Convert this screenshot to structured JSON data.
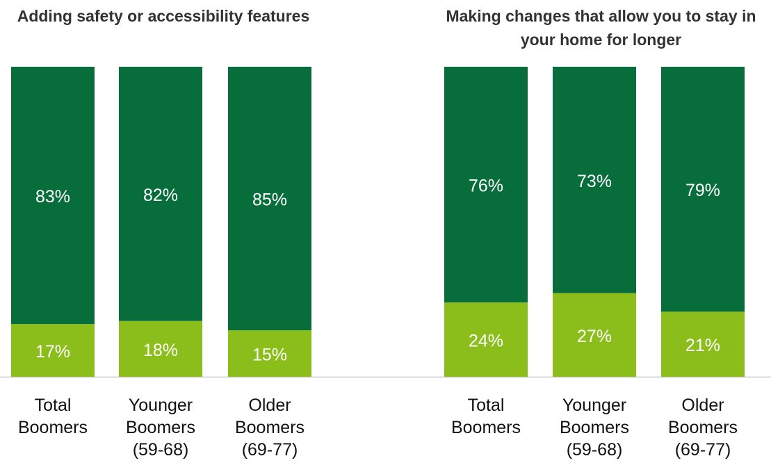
{
  "chart_data": [
    {
      "type": "bar",
      "stacked": true,
      "title": "Adding safety or accessibility features",
      "categories": [
        "Total Boomers",
        "Younger Boomers (59-68)",
        "Older Boomers (69-77)"
      ],
      "category_lines": [
        [
          "Total",
          "Boomers"
        ],
        [
          "Younger",
          "Boomers",
          "(59-68)"
        ],
        [
          "Older",
          "Boomers",
          "(69-77)"
        ]
      ],
      "series": [
        {
          "values": [
            17,
            18,
            15
          ],
          "labels": [
            "17%",
            "18%",
            "15%"
          ],
          "color": "#8BBE1A"
        },
        {
          "values": [
            83,
            82,
            85
          ],
          "labels": [
            "83%",
            "82%",
            "85%"
          ],
          "color": "#066D3B"
        }
      ],
      "ylim": [
        0,
        100
      ],
      "grid": false,
      "legend": "none"
    },
    {
      "type": "bar",
      "stacked": true,
      "title": "Making changes that allow you to stay in your home for longer",
      "categories": [
        "Total Boomers",
        "Younger Boomers (59-68)",
        "Older Boomers (69-77)"
      ],
      "category_lines": [
        [
          "Total",
          "Boomers"
        ],
        [
          "Younger",
          "Boomers",
          "(59-68)"
        ],
        [
          "Older",
          "Boomers",
          "(69-77)"
        ]
      ],
      "series": [
        {
          "values": [
            24,
            27,
            21
          ],
          "labels": [
            "24%",
            "27%",
            "21%"
          ],
          "color": "#8BBE1A"
        },
        {
          "values": [
            76,
            73,
            79
          ],
          "labels": [
            "76%",
            "73%",
            "79%"
          ],
          "color": "#066D3B"
        }
      ],
      "ylim": [
        0,
        100
      ],
      "grid": false,
      "legend": "none"
    }
  ],
  "colors": {
    "dark_green": "#066D3B",
    "light_green": "#8BBE1A",
    "axis": "#D9D9D9"
  },
  "titles": {
    "left": "Adding safety or accessibility features",
    "right": "Making changes that allow you to stay in your home for longer"
  }
}
